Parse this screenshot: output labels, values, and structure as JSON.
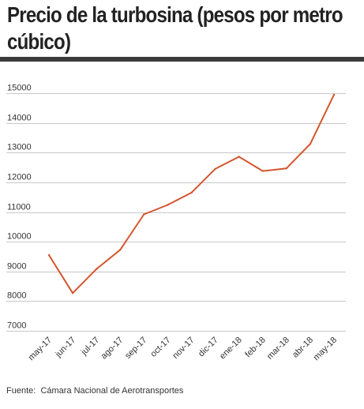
{
  "title": "Precio de la turbosina (pesos por metro cúbico)",
  "source_label": "Fuente:",
  "source_text": "Cámara Nacional de Aerotransportes",
  "colors": {
    "line": "#d4562e",
    "grid": "#c8c8c8",
    "text": "#333333",
    "rule": "#3a3a3a"
  },
  "chart_data": {
    "type": "line",
    "title": "Precio de la turbosina (pesos por metro cúbico)",
    "xlabel": "",
    "ylabel": "",
    "categories": [
      "may-17",
      "jun-17",
      "jul-17",
      "ago-17",
      "sep-17",
      "oct-17",
      "nov-17",
      "dic-17",
      "ene-18",
      "feb-18",
      "mar-18",
      "abr-18",
      "may-18"
    ],
    "yticks": [
      7000,
      8000,
      9000,
      10000,
      11000,
      12000,
      13000,
      14000,
      15000
    ],
    "ylim": [
      7000,
      15000
    ],
    "grid": true,
    "legend": "none",
    "series": [
      {
        "values": [
          9550,
          8270,
          9080,
          9730,
          10920,
          11240,
          11650,
          12450,
          12860,
          12380,
          12470,
          13290,
          14950
        ]
      }
    ]
  }
}
